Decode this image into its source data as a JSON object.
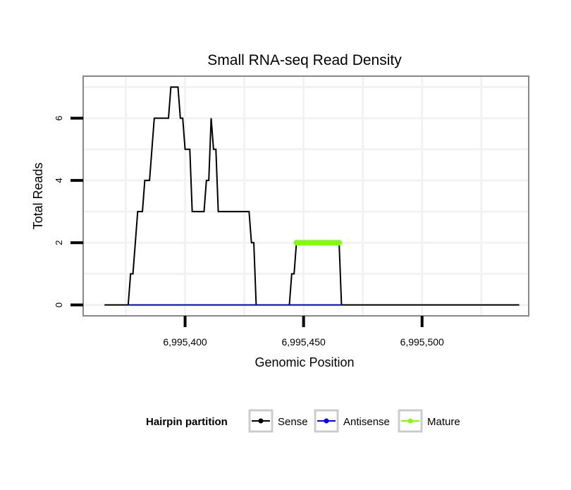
{
  "chart_data": {
    "type": "line",
    "title": "Small RNA-seq Read Density",
    "xlabel": "Genomic Position",
    "ylabel": "Total Reads",
    "xlim": [
      6995357,
      6995545
    ],
    "ylim": [
      -0.35,
      7.35
    ],
    "x_ticks": [
      6995400,
      6995450,
      6995500
    ],
    "x_tick_labels": [
      "6,995,400",
      "6,995,450",
      "6,995,500"
    ],
    "y_ticks": [
      0,
      2,
      4,
      6
    ],
    "y_tick_labels": [
      "0",
      "2",
      "4",
      "6"
    ],
    "grid": true,
    "legend": {
      "title": "Hairpin partition",
      "position": "bottom",
      "entries": [
        {
          "label": "Sense",
          "color": "#000000"
        },
        {
          "label": "Antisense",
          "color": "#0000ff"
        },
        {
          "label": "Mature",
          "color": "#7fff00"
        }
      ]
    },
    "series": [
      {
        "name": "Sense",
        "color": "#000000",
        "points": [
          [
            6995366,
            0
          ],
          [
            6995376,
            0
          ],
          [
            6995377,
            1
          ],
          [
            6995378,
            1
          ],
          [
            6995380,
            3
          ],
          [
            6995382,
            3
          ],
          [
            6995383,
            4
          ],
          [
            6995385,
            4
          ],
          [
            6995387,
            6
          ],
          [
            6995393,
            6
          ],
          [
            6995394,
            7
          ],
          [
            6995397,
            7
          ],
          [
            6995398,
            6
          ],
          [
            6995399,
            6
          ],
          [
            6995400,
            5
          ],
          [
            6995402,
            5
          ],
          [
            6995403,
            3
          ],
          [
            6995405,
            3
          ],
          [
            6995408,
            3
          ],
          [
            6995409,
            4
          ],
          [
            6995410,
            4
          ],
          [
            6995411,
            6
          ],
          [
            6995412,
            5
          ],
          [
            6995413,
            5
          ],
          [
            6995414,
            3
          ],
          [
            6995419,
            3
          ],
          [
            6995423,
            3
          ],
          [
            6995427,
            3
          ],
          [
            6995428,
            2
          ],
          [
            6995429,
            2
          ],
          [
            6995430,
            0
          ],
          [
            6995444,
            0
          ],
          [
            6995445,
            1
          ],
          [
            6995446,
            1
          ],
          [
            6995447,
            2
          ],
          [
            6995465,
            2
          ],
          [
            6995466,
            0
          ],
          [
            6995541,
            0
          ]
        ]
      },
      {
        "name": "Antisense",
        "color": "#0000ff",
        "points": [
          [
            6995376,
            0
          ],
          [
            6995466,
            0
          ]
        ]
      },
      {
        "name": "Mature",
        "color": "#7fff00",
        "points": [
          [
            6995447,
            2
          ],
          [
            6995448,
            2
          ],
          [
            6995449,
            2
          ],
          [
            6995450,
            2
          ],
          [
            6995451,
            2
          ],
          [
            6995452,
            2
          ],
          [
            6995453,
            2
          ],
          [
            6995454,
            2
          ],
          [
            6995455,
            2
          ],
          [
            6995456,
            2
          ],
          [
            6995457,
            2
          ],
          [
            6995458,
            2
          ],
          [
            6995459,
            2
          ],
          [
            6995460,
            2
          ],
          [
            6995461,
            2
          ],
          [
            6995462,
            2
          ],
          [
            6995463,
            2
          ],
          [
            6995464,
            2
          ],
          [
            6995465,
            2
          ]
        ]
      }
    ]
  }
}
